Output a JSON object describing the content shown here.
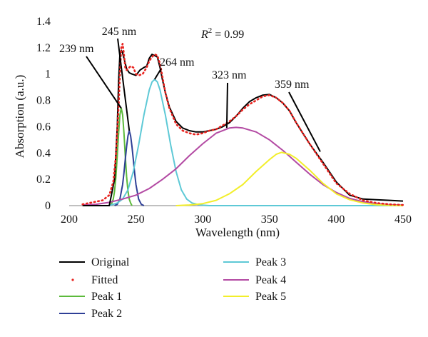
{
  "chart_data": {
    "type": "line",
    "xlabel": "Wavelength (nm)",
    "ylabel": "Absorption (a.u.)",
    "xlim": [
      200,
      450
    ],
    "ylim": [
      0,
      1.4
    ],
    "xticks": [
      200,
      250,
      300,
      350,
      400,
      450
    ],
    "yticks": [
      0,
      0.2,
      0.4,
      0.6,
      0.8,
      1,
      1.2,
      1.4
    ],
    "grid": false,
    "legend_position": "bottom",
    "r2_label": {
      "prefix": "R",
      "sup": "2",
      "suffix": " = 0.99"
    },
    "series": [
      {
        "name": "Original",
        "color": "#000000",
        "style": "solid",
        "x": [
          210,
          230,
          234,
          236,
          237,
          238,
          239,
          240,
          241,
          243,
          245,
          247,
          250,
          253,
          256,
          258,
          260,
          262,
          264,
          266,
          268,
          270,
          272,
          275,
          280,
          285,
          290,
          295,
          300,
          305,
          310,
          315,
          320,
          325,
          330,
          335,
          340,
          345,
          350,
          355,
          360,
          365,
          370,
          380,
          390,
          400,
          410,
          420,
          430,
          440,
          450
        ],
        "y": [
          0.0,
          0.0,
          0.2,
          0.6,
          0.95,
          1.15,
          1.18,
          1.16,
          1.12,
          1.04,
          1.01,
          1.0,
          0.99,
          1.03,
          1.05,
          1.06,
          1.12,
          1.15,
          1.14,
          1.13,
          1.05,
          0.95,
          0.86,
          0.75,
          0.64,
          0.59,
          0.57,
          0.56,
          0.56,
          0.57,
          0.58,
          0.6,
          0.63,
          0.68,
          0.74,
          0.79,
          0.82,
          0.84,
          0.845,
          0.82,
          0.78,
          0.72,
          0.63,
          0.47,
          0.33,
          0.18,
          0.08,
          0.05,
          0.045,
          0.04,
          0.035
        ]
      },
      {
        "name": "Fitted",
        "color": "#e8231f",
        "style": "dotted",
        "x": [
          210,
          225,
          230,
          233,
          235,
          237,
          238,
          239,
          240,
          241,
          242,
          243,
          244,
          246,
          248,
          250,
          252,
          255,
          258,
          260,
          262,
          264,
          266,
          268,
          270,
          272,
          275,
          280,
          285,
          290,
          295,
          300,
          305,
          310,
          315,
          320,
          325,
          330,
          335,
          340,
          345,
          350,
          355,
          360,
          365,
          370,
          380,
          390,
          400,
          410,
          420,
          430,
          440,
          450
        ],
        "y": [
          0.01,
          0.04,
          0.08,
          0.18,
          0.38,
          0.75,
          1.0,
          1.2,
          1.23,
          1.15,
          1.05,
          1.03,
          1.04,
          1.06,
          1.05,
          1.0,
          0.99,
          1.0,
          1.05,
          1.1,
          1.13,
          1.15,
          1.14,
          1.08,
          0.97,
          0.86,
          0.74,
          0.62,
          0.57,
          0.55,
          0.54,
          0.55,
          0.57,
          0.58,
          0.61,
          0.64,
          0.68,
          0.73,
          0.77,
          0.8,
          0.83,
          0.84,
          0.82,
          0.78,
          0.72,
          0.63,
          0.47,
          0.32,
          0.17,
          0.09,
          0.04,
          0.02,
          0.01,
          0.005
        ]
      },
      {
        "name": "Peak 1",
        "color": "#5cba3b",
        "style": "solid",
        "x": [
          231,
          232,
          233,
          234,
          235,
          236,
          237,
          238,
          239,
          240,
          241,
          242,
          243,
          244,
          245,
          246,
          247
        ],
        "y": [
          0.0,
          0.02,
          0.05,
          0.11,
          0.22,
          0.38,
          0.55,
          0.69,
          0.74,
          0.69,
          0.55,
          0.38,
          0.22,
          0.11,
          0.05,
          0.02,
          0.0
        ]
      },
      {
        "name": "Peak 2",
        "color": "#2e3f96",
        "style": "solid",
        "x": [
          234,
          236,
          238,
          240,
          241,
          242,
          243,
          244,
          245,
          246,
          247,
          248,
          249,
          250,
          252,
          254,
          256
        ],
        "y": [
          0.0,
          0.01,
          0.05,
          0.16,
          0.25,
          0.35,
          0.45,
          0.53,
          0.57,
          0.53,
          0.45,
          0.35,
          0.25,
          0.16,
          0.05,
          0.01,
          0.0
        ]
      },
      {
        "name": "Peak 3",
        "color": "#5ec9d6",
        "style": "solid",
        "x": [
          230,
          236,
          240,
          244,
          248,
          252,
          256,
          260,
          262,
          264,
          266,
          268,
          272,
          276,
          280,
          284,
          288,
          292,
          298,
          305,
          315,
          330,
          350,
          400,
          450
        ],
        "y": [
          0.0,
          0.02,
          0.05,
          0.12,
          0.26,
          0.46,
          0.69,
          0.88,
          0.94,
          0.96,
          0.94,
          0.88,
          0.69,
          0.46,
          0.26,
          0.12,
          0.05,
          0.02,
          0.005,
          0.0,
          0.0,
          0.0,
          0.0,
          0.0,
          0.0
        ]
      },
      {
        "name": "Peak 4",
        "color": "#b34aa3",
        "style": "solid",
        "x": [
          210,
          220,
          230,
          240,
          250,
          260,
          270,
          280,
          290,
          300,
          310,
          320,
          325,
          330,
          340,
          350,
          360,
          370,
          380,
          390,
          400,
          410,
          420,
          430,
          440,
          450
        ],
        "y": [
          0.005,
          0.01,
          0.025,
          0.05,
          0.08,
          0.13,
          0.2,
          0.28,
          0.38,
          0.47,
          0.55,
          0.59,
          0.595,
          0.59,
          0.56,
          0.5,
          0.42,
          0.33,
          0.24,
          0.16,
          0.1,
          0.055,
          0.03,
          0.015,
          0.007,
          0.003
        ]
      },
      {
        "name": "Peak 5",
        "color": "#f2ee2a",
        "style": "solid",
        "x": [
          280,
          290,
          300,
          310,
          320,
          330,
          340,
          350,
          355,
          359,
          365,
          370,
          380,
          390,
          400,
          410,
          420,
          430,
          440,
          450
        ],
        "y": [
          0.0,
          0.005,
          0.015,
          0.04,
          0.09,
          0.16,
          0.26,
          0.35,
          0.39,
          0.405,
          0.39,
          0.36,
          0.27,
          0.17,
          0.09,
          0.045,
          0.02,
          0.007,
          0.002,
          0.0
        ]
      }
    ],
    "annotations": [
      {
        "text": "239 nm",
        "target": [
          239,
          0.74
        ],
        "anchor": "end"
      },
      {
        "text": "245 nm",
        "target": [
          245,
          0.57
        ],
        "anchor": "middle"
      },
      {
        "text": "264 nm",
        "target": [
          264,
          0.96
        ],
        "anchor": "start"
      },
      {
        "text": "323 nm",
        "target": [
          318,
          0.59
        ],
        "anchor": "start"
      },
      {
        "text": "359 nm",
        "target": [
          388,
          0.41
        ],
        "anchor": "start"
      }
    ]
  }
}
